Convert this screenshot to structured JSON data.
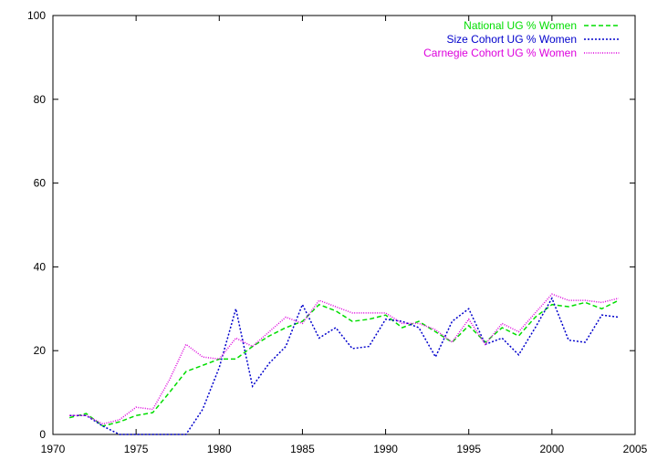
{
  "chart_data": {
    "type": "line",
    "title": "",
    "xlabel": "",
    "ylabel": "",
    "xlim": [
      1970,
      2005
    ],
    "ylim": [
      0,
      100
    ],
    "xticks": [
      1970,
      1975,
      1980,
      1985,
      1990,
      1995,
      2000,
      2005
    ],
    "yticks": [
      0,
      20,
      40,
      60,
      80,
      100
    ],
    "grid": false,
    "legend_position": "top-right",
    "series": [
      {
        "name": "National UG % Women",
        "color": "#00dd00",
        "dash": "dashed",
        "x": [
          1971,
          1972,
          1973,
          1974,
          1975,
          1976,
          1977,
          1978,
          1979,
          1980,
          1981,
          1982,
          1983,
          1984,
          1985,
          1986,
          1987,
          1988,
          1989,
          1990,
          1991,
          1992,
          1993,
          1994,
          1995,
          1996,
          1997,
          1998,
          1999,
          2000,
          2001,
          2002,
          2003,
          2004
        ],
        "y": [
          4,
          5,
          2,
          3,
          4.5,
          5.2,
          10,
          15,
          16.5,
          18,
          18,
          21,
          23.5,
          25.5,
          27,
          31,
          29.5,
          27,
          27.5,
          28.5,
          25.5,
          27,
          24.5,
          22,
          26,
          22,
          25.5,
          23.5,
          28,
          31,
          30.5,
          31.5,
          30,
          32
        ]
      },
      {
        "name": "Size Cohort UG % Women",
        "color": "#0000cc",
        "dash": "dotted-dense",
        "x": [
          1971,
          1972,
          1973,
          1974,
          1975,
          1976,
          1977,
          1978,
          1979,
          1980,
          1981,
          1982,
          1983,
          1984,
          1985,
          1986,
          1987,
          1988,
          1989,
          1990,
          1991,
          1992,
          1993,
          1994,
          1995,
          1996,
          1997,
          1998,
          1999,
          2000,
          2001,
          2002,
          2003,
          2004
        ],
        "y": [
          4.5,
          4.5,
          2,
          0,
          0,
          0,
          0,
          0,
          6,
          16,
          30,
          11.5,
          17,
          21,
          31,
          23,
          25.5,
          20.5,
          21,
          27.5,
          27,
          25.5,
          18.5,
          27,
          30,
          21.5,
          23,
          19,
          25.5,
          32.5,
          22.5,
          22,
          28.5,
          28
        ]
      },
      {
        "name": "Carnegie Cohort UG % Women",
        "color": "#dd00dd",
        "dash": "dotted",
        "x": [
          1971,
          1972,
          1973,
          1974,
          1975,
          1976,
          1977,
          1978,
          1979,
          1980,
          1981,
          1982,
          1983,
          1984,
          1985,
          1986,
          1987,
          1988,
          1989,
          1990,
          1991,
          1992,
          1993,
          1994,
          1995,
          1996,
          1997,
          1998,
          1999,
          2000,
          2001,
          2002,
          2003,
          2004
        ],
        "y": [
          4.5,
          4.5,
          2.5,
          3.5,
          6.5,
          6,
          13,
          21.5,
          18.5,
          18,
          23,
          21,
          24.5,
          28,
          26.5,
          32,
          30.5,
          29,
          29,
          29,
          26.5,
          26.5,
          25,
          22,
          27.5,
          21.5,
          26.5,
          24.5,
          29,
          33.5,
          32,
          32,
          31.5,
          32.5
        ]
      }
    ]
  }
}
